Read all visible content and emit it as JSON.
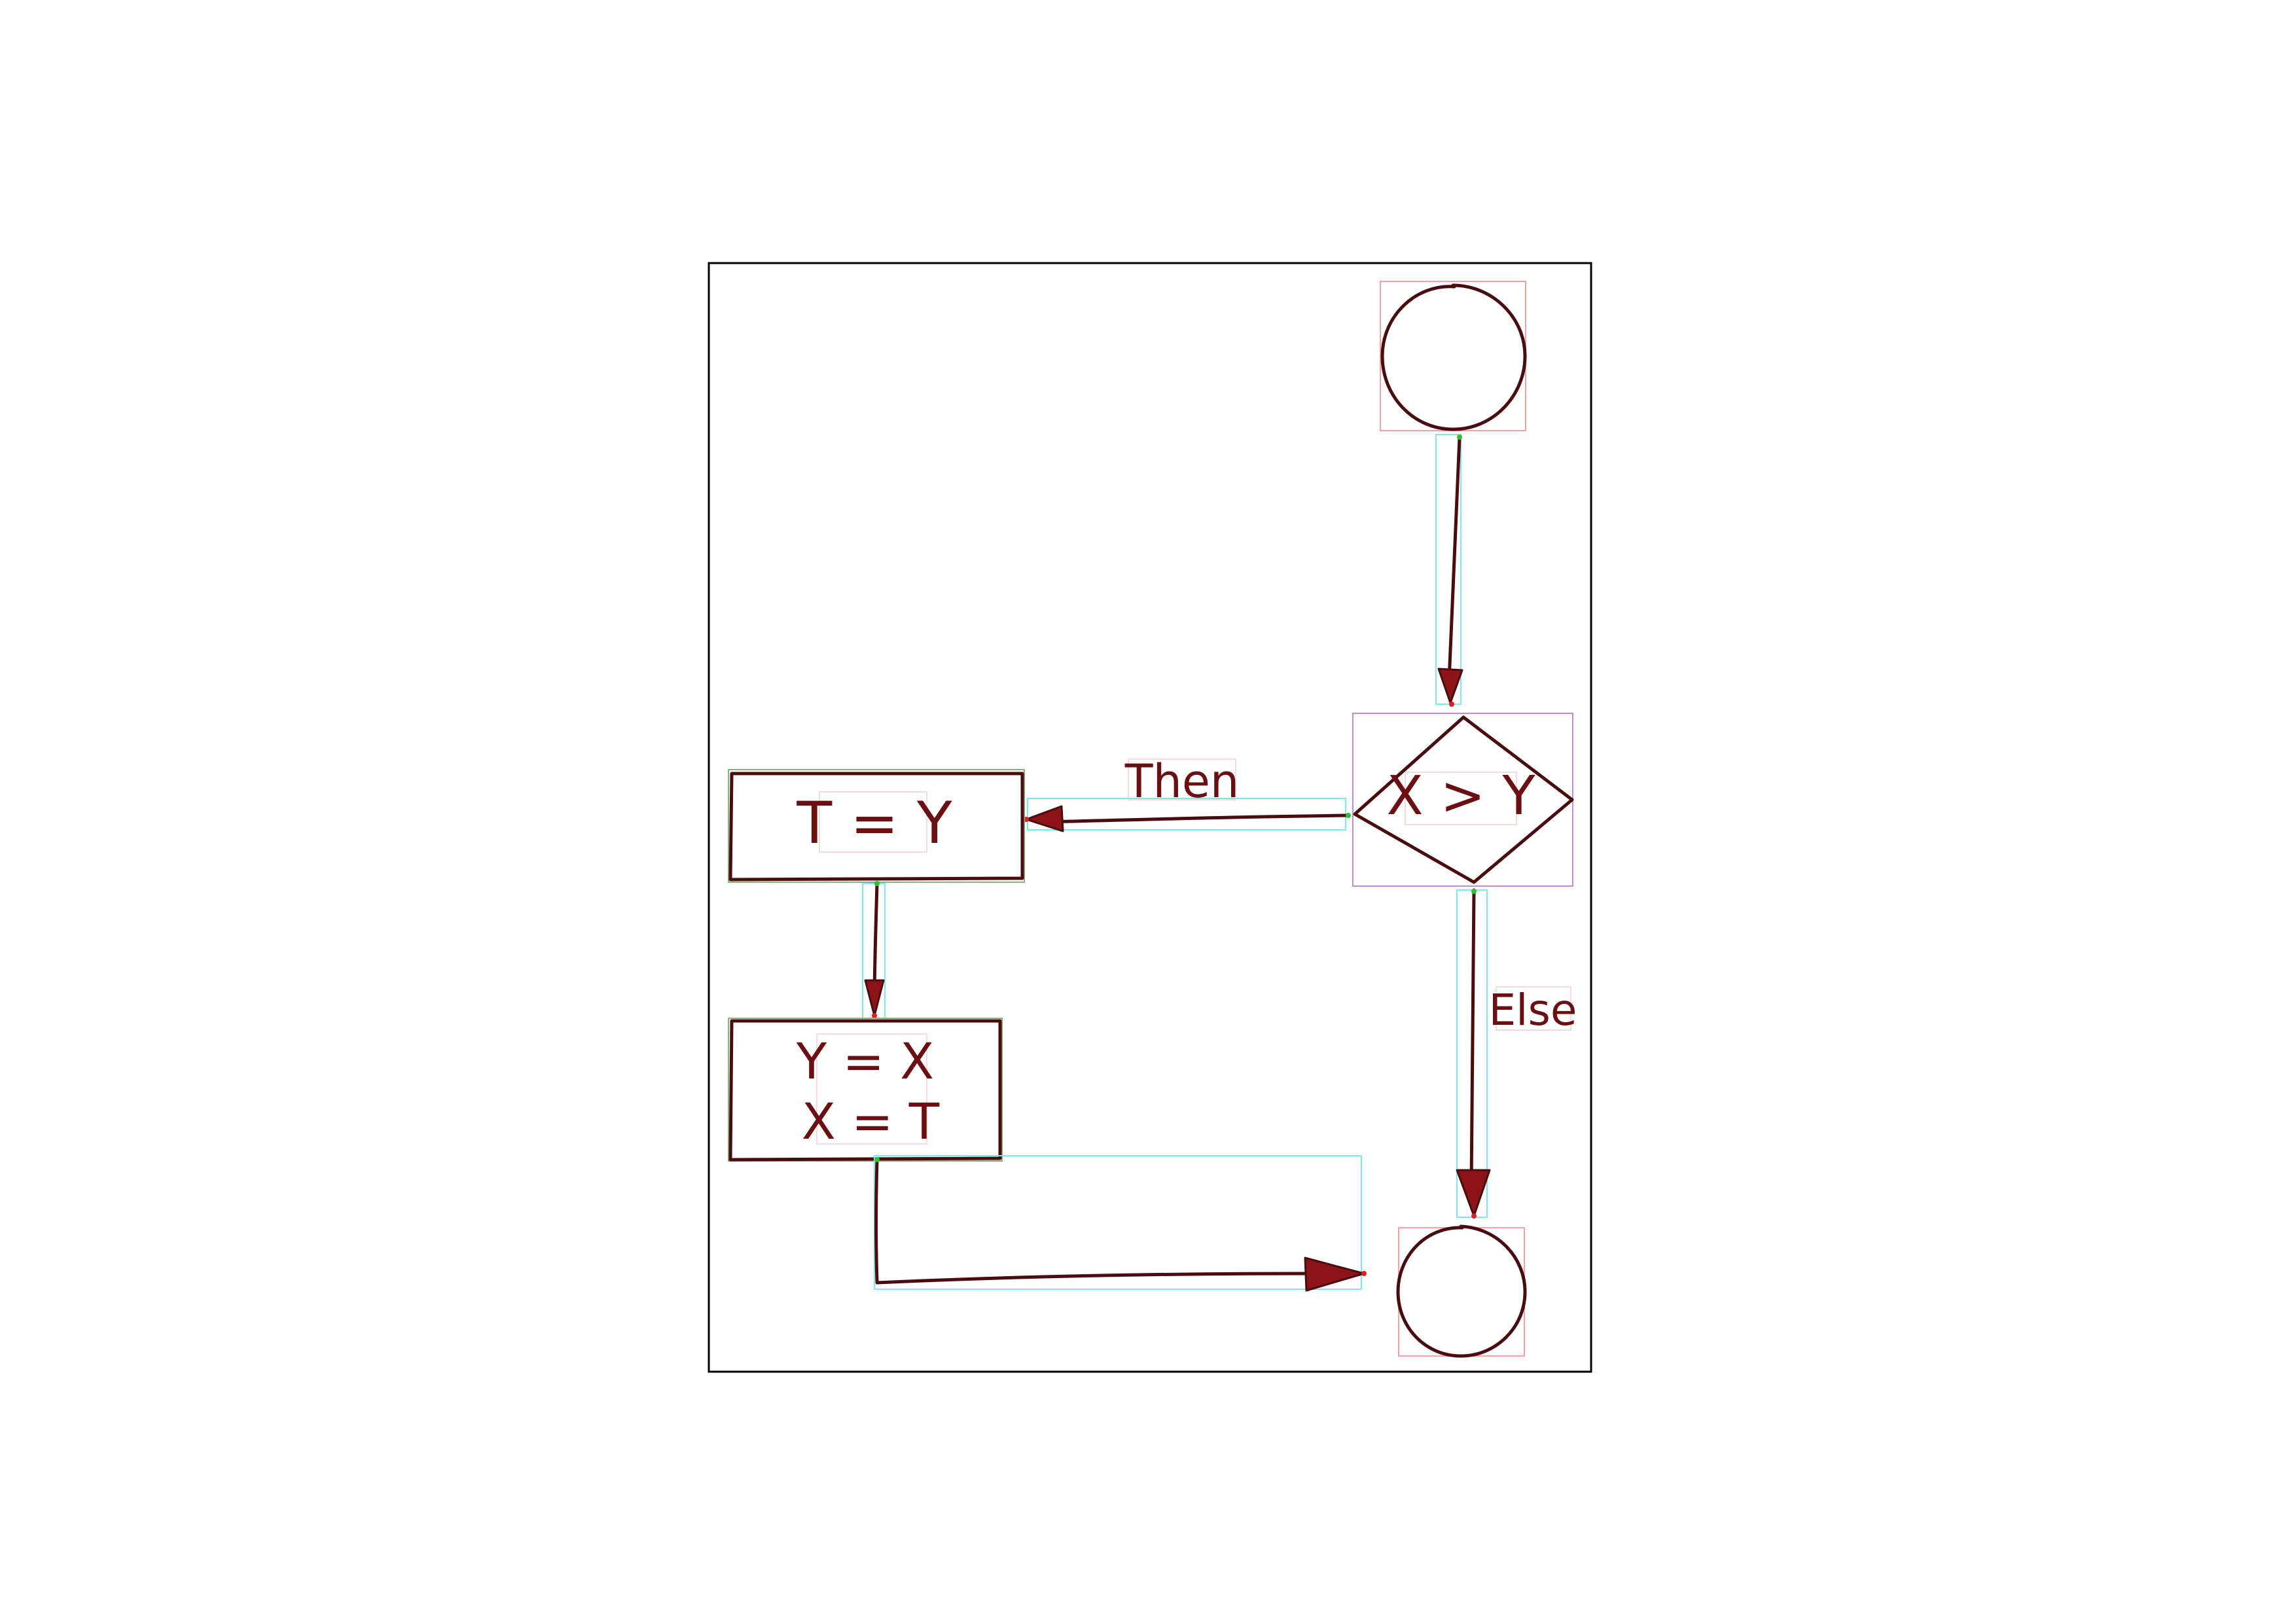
{
  "diagram": {
    "decision_label": "X > Y",
    "process_1_label": "T = Y",
    "process_2_line_1": "Y = X",
    "process_2_line_2": "X = T",
    "edge_then_label": "Then",
    "edge_else_label": "Else"
  },
  "colors": {
    "ink": "#4a0d0f",
    "arrow_fill": "#8c1418",
    "text": "#6b0f12",
    "annotation_red": "#f3a3a3",
    "annotation_cyan": "#7fe8ee",
    "annotation_purple": "#c58ad8"
  }
}
